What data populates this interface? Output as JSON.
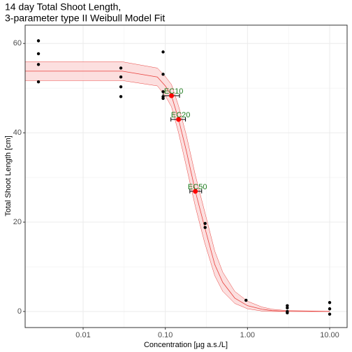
{
  "chart_data": {
    "type": "scatter",
    "title": [
      "14 day Total Shoot Length,",
      "3-parameter type II Weibull Model Fit"
    ],
    "x_label": "Concentration [µg a.s./L]",
    "y_label": "Total Shoot Length [cm]",
    "xscale": "log",
    "grid": true,
    "xlim": [
      0.00197,
      16.3
    ],
    "ylim": [
      -3.6,
      64.1
    ],
    "xticks": [
      0.01,
      {
        "value": 0.1,
        "label": "0.10"
      },
      {
        "value": 1,
        "label": "1.00"
      },
      {
        "value": 10,
        "label": "10.00"
      }
    ],
    "xminorticks": [
      0.0316,
      0.316,
      3.16
    ],
    "yticks": [
      0,
      20,
      40,
      60
    ],
    "yminorticks": [
      10,
      30,
      50
    ],
    "points": {
      "color": "#000000",
      "x": [
        0.00286,
        0.00286,
        0.00286,
        0.00286,
        0.0288,
        0.0288,
        0.0288,
        0.0288,
        0.094,
        0.094,
        0.094,
        0.094,
        0.094,
        0.305,
        0.305,
        0.96,
        3.05,
        3.05,
        3.05,
        3.05,
        10,
        10,
        10
      ],
      "y": [
        60.6,
        57.7,
        55.3,
        51.4,
        54.5,
        52.5,
        50.3,
        48.1,
        58.1,
        53.1,
        49.2,
        48.1,
        47.7,
        19.7,
        18.8,
        2.5,
        1.3,
        0.8,
        0,
        -0.3,
        2.0,
        0.6,
        -0.6
      ]
    },
    "fit": {
      "color": "#e8413d",
      "band_color": "#fcdcdc",
      "x": [
        0.00197,
        0.003,
        0.03,
        0.08,
        0.1,
        0.119,
        0.145,
        0.18,
        0.232,
        0.3,
        0.4,
        0.5,
        0.7,
        1.0,
        1.5,
        2,
        3,
        10
      ],
      "y": [
        53.8,
        53.8,
        53.8,
        52.5,
        50.5,
        48.3,
        43,
        36,
        26.9,
        19,
        10.5,
        6.5,
        3,
        1.3,
        0.5,
        0.2,
        0.05,
        0
      ],
      "lower": [
        51.7,
        51.7,
        51.7,
        50.5,
        48.3,
        45.8,
        40,
        32.5,
        23.5,
        15.5,
        8,
        4.5,
        1.8,
        0.6,
        0.1,
        0,
        0,
        0
      ],
      "upper": [
        55.9,
        55.9,
        55.9,
        54.5,
        52.6,
        50.8,
        46,
        39.5,
        30.5,
        22.5,
        13.5,
        8.8,
        4.5,
        2.3,
        1.0,
        0.5,
        0.2,
        0.05
      ]
    },
    "ec": {
      "color": "#ff0000",
      "labels": [
        "EC10",
        "EC20",
        "EC50"
      ],
      "x": [
        0.119,
        0.145,
        0.232
      ],
      "y": [
        48.3,
        43.0,
        26.9
      ],
      "ci_low": [
        0.094,
        0.117,
        0.199
      ],
      "ci_high": [
        0.149,
        0.176,
        0.277
      ]
    }
  }
}
